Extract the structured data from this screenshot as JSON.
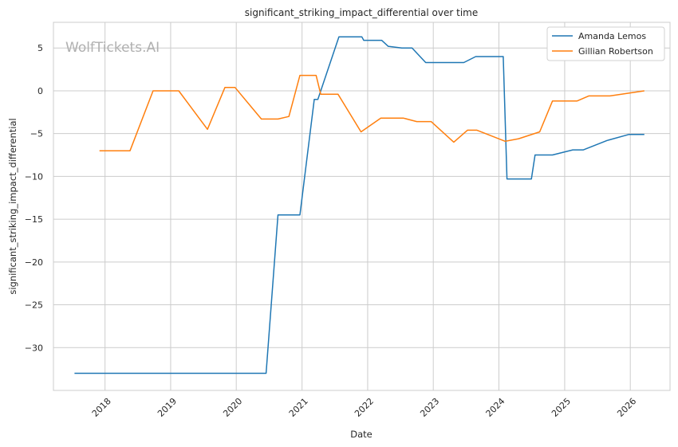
{
  "chart_data": {
    "type": "line",
    "title": "significant_striking_impact_differential over time",
    "xlabel": "Date",
    "ylabel": "significant_striking_impact_differential",
    "watermark": "WolfTickets.AI",
    "xlim": [
      "2017-03-20",
      "2026-08-10"
    ],
    "ylim": [
      -35,
      8
    ],
    "x_ticks": [
      "2018-01-01",
      "2019-01-01",
      "2020-01-01",
      "2021-01-01",
      "2022-01-01",
      "2023-01-01",
      "2024-01-01",
      "2025-01-01",
      "2026-01-01"
    ],
    "x_tick_labels": [
      "2018",
      "2019",
      "2020",
      "2021",
      "2022",
      "2023",
      "2024",
      "2025",
      "2026"
    ],
    "y_ticks": [
      5,
      0,
      -5,
      -10,
      -15,
      -20,
      -25,
      -30
    ],
    "y_tick_labels": [
      "5",
      "0",
      "−5",
      "−10",
      "−15",
      "−20",
      "−25",
      "−30"
    ],
    "grid": true,
    "legend_position": "top-right",
    "series": [
      {
        "name": "Amanda Lemos",
        "color": "#1f77b4",
        "points": [
          [
            "2017-07-15",
            -33.0
          ],
          [
            "2020-06-15",
            -33.0
          ],
          [
            "2020-08-20",
            -14.5
          ],
          [
            "2020-12-20",
            -14.5
          ],
          [
            "2021-03-10",
            -1.0
          ],
          [
            "2021-03-30",
            -1.0
          ],
          [
            "2021-07-25",
            6.3
          ],
          [
            "2021-11-30",
            6.3
          ],
          [
            "2021-12-10",
            5.9
          ],
          [
            "2022-03-20",
            5.9
          ],
          [
            "2022-04-25",
            5.2
          ],
          [
            "2022-07-10",
            5.0
          ],
          [
            "2022-09-05",
            5.0
          ],
          [
            "2022-11-20",
            3.3
          ],
          [
            "2023-06-20",
            3.3
          ],
          [
            "2023-08-25",
            4.0
          ],
          [
            "2024-01-25",
            4.0
          ],
          [
            "2024-02-15",
            -10.3
          ],
          [
            "2024-06-30",
            -10.3
          ],
          [
            "2024-07-20",
            -7.5
          ],
          [
            "2024-10-25",
            -7.5
          ],
          [
            "2025-02-15",
            -6.9
          ],
          [
            "2025-04-15",
            -6.9
          ],
          [
            "2025-08-25",
            -5.8
          ],
          [
            "2025-12-25",
            -5.1
          ],
          [
            "2026-03-20",
            -5.1
          ]
        ]
      },
      {
        "name": "Gillian Robertson",
        "color": "#ff7f0e",
        "points": [
          [
            "2017-12-01",
            -7.0
          ],
          [
            "2018-05-20",
            -7.0
          ],
          [
            "2018-09-25",
            0.0
          ],
          [
            "2019-02-15",
            0.0
          ],
          [
            "2019-07-25",
            -4.5
          ],
          [
            "2019-10-30",
            0.4
          ],
          [
            "2019-12-25",
            0.4
          ],
          [
            "2020-05-20",
            -3.3
          ],
          [
            "2020-08-20",
            -3.3
          ],
          [
            "2020-10-20",
            -3.0
          ],
          [
            "2020-12-20",
            1.8
          ],
          [
            "2021-03-20",
            1.8
          ],
          [
            "2021-04-15",
            -0.4
          ],
          [
            "2021-07-20",
            -0.4
          ],
          [
            "2021-11-25",
            -4.8
          ],
          [
            "2022-03-15",
            -3.2
          ],
          [
            "2022-07-20",
            -3.2
          ],
          [
            "2022-10-01",
            -3.6
          ],
          [
            "2022-12-20",
            -3.6
          ],
          [
            "2023-04-25",
            -6.0
          ],
          [
            "2023-07-10",
            -4.6
          ],
          [
            "2023-09-01",
            -4.6
          ],
          [
            "2024-02-05",
            -5.9
          ],
          [
            "2024-04-20",
            -5.6
          ],
          [
            "2024-08-15",
            -4.8
          ],
          [
            "2024-10-25",
            -1.2
          ],
          [
            "2025-03-10",
            -1.2
          ],
          [
            "2025-05-15",
            -0.6
          ],
          [
            "2025-09-10",
            -0.6
          ],
          [
            "2026-03-20",
            0.0
          ]
        ]
      }
    ]
  }
}
